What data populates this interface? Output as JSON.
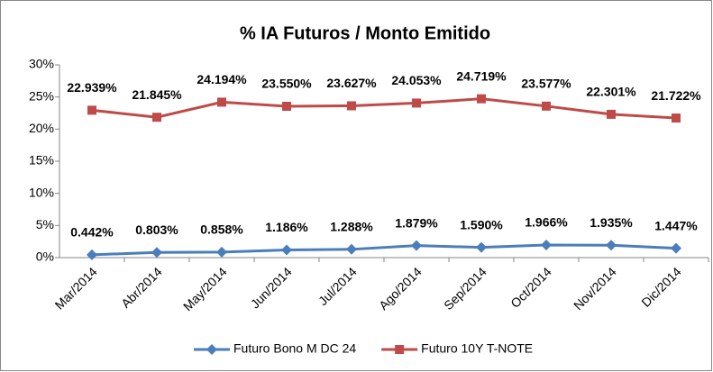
{
  "chart_data": {
    "type": "line",
    "title": "% IA Futuros / Monto Emitido",
    "categories": [
      "Mar/2014",
      "Abr/2014",
      "May/2014",
      "Jun/2014",
      "Jul/2014",
      "Ago/2014",
      "Sep/2014",
      "Oct/2014",
      "Nov/2014",
      "Dic/2014"
    ],
    "series": [
      {
        "name": "Futuro Bono M DC 24",
        "color": "#4a7ebb",
        "marker": "diamond",
        "values": [
          0.442,
          0.803,
          0.858,
          1.186,
          1.288,
          1.879,
          1.59,
          1.966,
          1.935,
          1.447
        ],
        "value_labels": [
          "0.442%",
          "0.803%",
          "0.858%",
          "1.186%",
          "1.288%",
          "1.879%",
          "1.590%",
          "1.966%",
          "1.935%",
          "1.447%"
        ]
      },
      {
        "name": "Futuro 10Y T-NOTE",
        "color": "#be4b48",
        "marker": "square",
        "values": [
          22.939,
          21.845,
          24.194,
          23.55,
          23.627,
          24.053,
          24.719,
          23.577,
          22.301,
          21.722
        ],
        "value_labels": [
          "22.939%",
          "21.845%",
          "24.194%",
          "23.550%",
          "23.627%",
          "24.053%",
          "24.719%",
          "23.577%",
          "22.301%",
          "21.722%"
        ]
      }
    ],
    "ylim": [
      0,
      30
    ],
    "yticks": [
      {
        "value": 0,
        "label": "0%"
      },
      {
        "value": 5,
        "label": "5%"
      },
      {
        "value": 10,
        "label": "10%"
      },
      {
        "value": 15,
        "label": "15%"
      },
      {
        "value": 20,
        "label": "20%"
      },
      {
        "value": 25,
        "label": "25%"
      },
      {
        "value": 30,
        "label": "30%"
      }
    ],
    "legend": "bottom"
  }
}
